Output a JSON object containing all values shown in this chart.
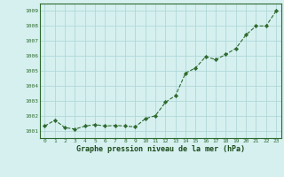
{
  "x": [
    0,
    1,
    2,
    3,
    4,
    5,
    6,
    7,
    8,
    9,
    10,
    11,
    12,
    13,
    14,
    15,
    16,
    17,
    18,
    19,
    20,
    21,
    22,
    23
  ],
  "y": [
    1001.3,
    1001.7,
    1001.2,
    1001.1,
    1001.3,
    1001.4,
    1001.3,
    1001.35,
    1001.3,
    1001.25,
    1001.8,
    1002.0,
    1002.9,
    1003.35,
    1004.85,
    1005.2,
    1005.95,
    1005.75,
    1006.1,
    1006.5,
    1007.4,
    1008.0,
    1008.0,
    1009.0
  ],
  "line_color": "#2d6a2d",
  "marker_color": "#2d6a2d",
  "bg_color": "#d6f0f0",
  "grid_color": "#b0d8d8",
  "xlabel": "Graphe pression niveau de la mer (hPa)",
  "xlabel_color": "#1a4a1a",
  "ylabel_ticks": [
    1001,
    1002,
    1003,
    1004,
    1005,
    1006,
    1007,
    1008,
    1009
  ],
  "xlim": [
    -0.5,
    23.5
  ],
  "ylim": [
    1000.5,
    1009.5
  ],
  "xticks": [
    0,
    1,
    2,
    3,
    4,
    5,
    6,
    7,
    8,
    9,
    10,
    11,
    12,
    13,
    14,
    15,
    16,
    17,
    18,
    19,
    20,
    21,
    22,
    23
  ]
}
